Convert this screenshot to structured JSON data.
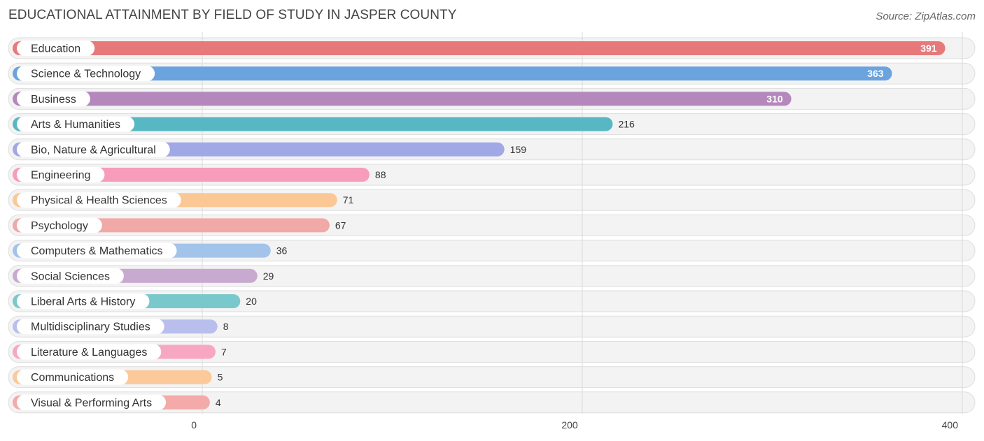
{
  "title": "EDUCATIONAL ATTAINMENT BY FIELD OF STUDY IN JASPER COUNTY",
  "source": "Source: ZipAtlas.com",
  "chart_data": {
    "type": "bar",
    "orientation": "horizontal",
    "categories": [
      "Education",
      "Science & Technology",
      "Business",
      "Arts & Humanities",
      "Bio, Nature & Agricultural",
      "Engineering",
      "Physical & Health Sciences",
      "Psychology",
      "Computers & Mathematics",
      "Social Sciences",
      "Liberal Arts & History",
      "Multidisciplinary Studies",
      "Literature & Languages",
      "Communications",
      "Visual & Performing Arts"
    ],
    "values": [
      391,
      363,
      310,
      216,
      159,
      88,
      71,
      67,
      36,
      29,
      20,
      8,
      7,
      5,
      4
    ],
    "colors": [
      "#e8797a",
      "#6aa3de",
      "#b588bd",
      "#57b8c3",
      "#a0a8e6",
      "#f79cba",
      "#fbc794",
      "#f0a9a6",
      "#a2c4ea",
      "#c8a9cf",
      "#79c9cc",
      "#b8bfec",
      "#f7a7c1",
      "#fbc99a",
      "#f3aaa8"
    ],
    "xticks": [
      0,
      200,
      400
    ],
    "xlim": [
      0,
      400
    ],
    "grid": true,
    "value_labels": true
  }
}
